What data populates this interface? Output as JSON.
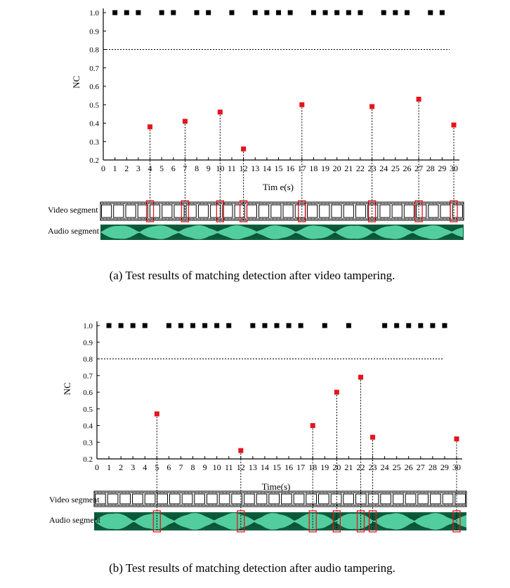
{
  "colors": {
    "ok": "#000000",
    "tampered": "#e5141c",
    "audio_bg": "#0a5a3a",
    "audio_wave": "#5fe3b0",
    "box": "#e5141c"
  },
  "labels": {
    "video_segment": "Video segment",
    "audio_segment": "Audio segment"
  },
  "chart_data": [
    {
      "type": "scatter",
      "title": "",
      "caption": "(a) Test results of matching detection after video tampering.",
      "xlabel": "Tim e(s)",
      "ylabel": "NC",
      "xlim": [
        0,
        30
      ],
      "ylim": [
        0.2,
        1.0
      ],
      "xticks": [
        0,
        1,
        2,
        3,
        4,
        5,
        6,
        7,
        8,
        9,
        10,
        11,
        12,
        13,
        14,
        15,
        16,
        17,
        18,
        19,
        20,
        21,
        22,
        23,
        24,
        25,
        26,
        27,
        28,
        29,
        30
      ],
      "yticks": [
        0.2,
        0.3,
        0.4,
        0.5,
        0.6,
        0.7,
        0.8,
        0.9,
        1.0
      ],
      "threshold": 0.8,
      "series": [
        {
          "name": "matched",
          "x": [
            1,
            2,
            3,
            5,
            6,
            8,
            9,
            11,
            13,
            14,
            15,
            16,
            18,
            19,
            20,
            21,
            22,
            24,
            25,
            26,
            28,
            29
          ],
          "y": [
            1,
            1,
            1,
            1,
            1,
            1,
            1,
            1,
            1,
            1,
            1,
            1,
            1,
            1,
            1,
            1,
            1,
            1,
            1,
            1,
            1,
            1
          ]
        },
        {
          "name": "tampered",
          "x": [
            4,
            7,
            10,
            12,
            17,
            23,
            27,
            30
          ],
          "y": [
            0.38,
            0.41,
            0.46,
            0.26,
            0.5,
            0.49,
            0.53,
            0.39
          ]
        }
      ],
      "segments": {
        "video_marked_seconds": [
          4,
          7,
          10,
          12,
          17,
          23,
          27,
          30
        ],
        "audio_marked_seconds": []
      }
    },
    {
      "type": "scatter",
      "title": "",
      "caption": "(b) Test results of matching detection after audio tampering.",
      "xlabel": "Time(s)",
      "ylabel": "NC",
      "xlim": [
        0,
        30
      ],
      "ylim": [
        0.2,
        1.0
      ],
      "xticks": [
        0,
        1,
        2,
        3,
        4,
        5,
        6,
        7,
        8,
        9,
        10,
        11,
        12,
        13,
        14,
        15,
        16,
        17,
        18,
        19,
        20,
        21,
        22,
        23,
        24,
        25,
        26,
        27,
        28,
        29,
        30
      ],
      "yticks": [
        0.2,
        0.3,
        0.4,
        0.5,
        0.6,
        0.7,
        0.8,
        0.9,
        1.0
      ],
      "threshold": 0.8,
      "series": [
        {
          "name": "matched",
          "x": [
            1,
            2,
            3,
            4,
            6,
            7,
            8,
            9,
            10,
            11,
            13,
            14,
            15,
            16,
            17,
            19,
            21,
            24,
            25,
            26,
            27,
            28,
            29
          ],
          "y": [
            1,
            1,
            1,
            1,
            1,
            1,
            1,
            1,
            1,
            1,
            1,
            1,
            1,
            1,
            1,
            1,
            1,
            1,
            1,
            1,
            1,
            1,
            1
          ]
        },
        {
          "name": "tampered",
          "x": [
            5,
            12,
            18,
            20,
            22,
            23,
            30
          ],
          "y": [
            0.47,
            0.25,
            0.4,
            0.6,
            0.69,
            0.33,
            0.32
          ]
        }
      ],
      "segments": {
        "video_marked_seconds": [],
        "audio_marked_seconds": [
          5,
          12,
          18,
          20,
          22,
          23,
          30
        ]
      }
    }
  ]
}
